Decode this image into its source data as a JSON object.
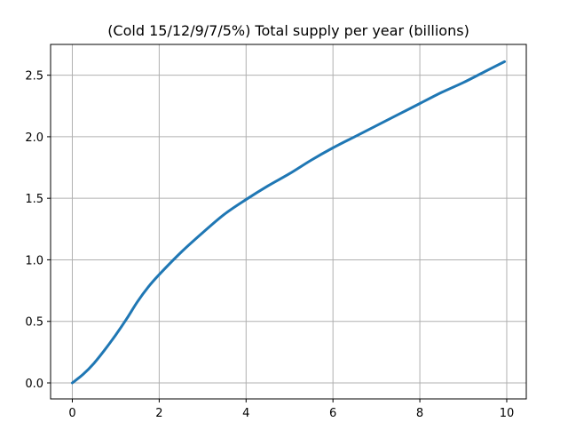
{
  "chart_data": {
    "type": "line",
    "title": "(Cold 15/12/9/7/5%) Total supply per year (billions)",
    "xlabel": "",
    "ylabel": "",
    "xlim": [
      -0.5,
      10.45
    ],
    "ylim": [
      -0.13,
      2.75
    ],
    "xticks": [
      0,
      2,
      4,
      6,
      8,
      10
    ],
    "xtick_labels": [
      "0",
      "2",
      "4",
      "6",
      "8",
      "10"
    ],
    "yticks": [
      0.0,
      0.5,
      1.0,
      1.5,
      2.0,
      2.5
    ],
    "ytick_labels": [
      "0.0",
      "0.5",
      "1.0",
      "1.5",
      "2.0",
      "2.5"
    ],
    "grid": true,
    "series": [
      {
        "color": "#1f77b4",
        "x": [
          0,
          0.25,
          0.5,
          0.75,
          1.0,
          1.25,
          1.5,
          1.75,
          2.0,
          2.5,
          3.0,
          3.5,
          4.0,
          4.5,
          5.0,
          5.5,
          6.0,
          6.5,
          7.0,
          7.5,
          8.0,
          8.5,
          9.0,
          9.5,
          9.95
        ],
        "y": [
          0.0,
          0.07,
          0.16,
          0.27,
          0.39,
          0.52,
          0.66,
          0.78,
          0.88,
          1.06,
          1.22,
          1.37,
          1.49,
          1.6,
          1.7,
          1.81,
          1.91,
          2.0,
          2.09,
          2.18,
          2.27,
          2.36,
          2.44,
          2.53,
          2.61
        ]
      }
    ]
  }
}
